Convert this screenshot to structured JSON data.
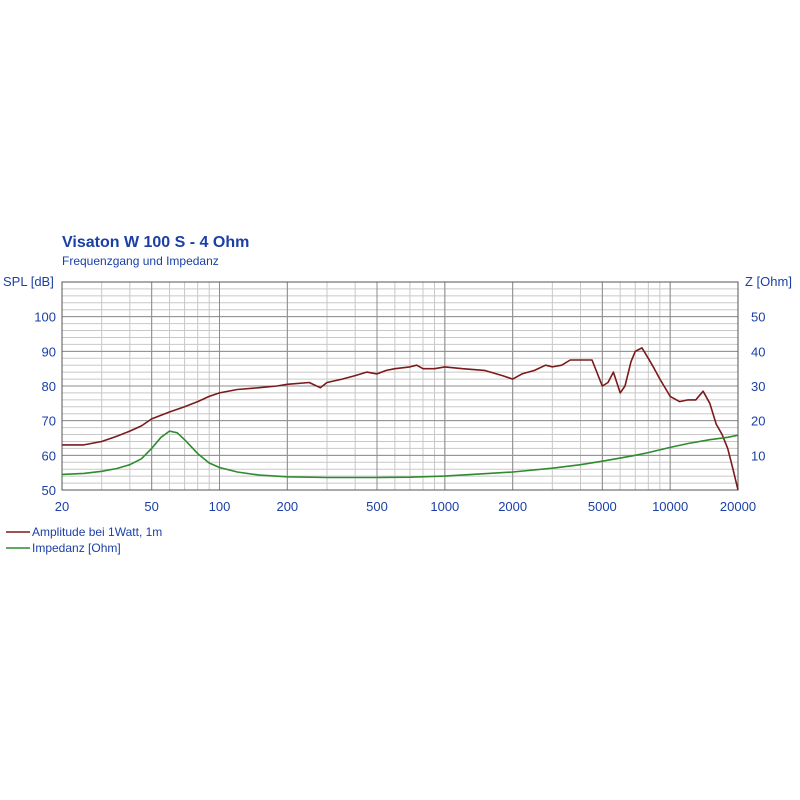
{
  "chart_data": {
    "type": "line",
    "title": "Visaton W 100 S - 4 Ohm",
    "subtitle": "Frequenzgang und Impedanz",
    "ylabel_left": "SPL [dB]",
    "ylabel_right": "Z [Ohm]",
    "x_scale": "log",
    "xlim": [
      20,
      20000
    ],
    "x_ticks": [
      20,
      50,
      100,
      200,
      500,
      1000,
      2000,
      5000,
      10000,
      20000
    ],
    "ylim_left": [
      50,
      110
    ],
    "y_ticks_left": [
      50,
      60,
      70,
      80,
      90,
      100
    ],
    "ylim_right": [
      0,
      60
    ],
    "y_ticks_right": [
      10,
      20,
      30,
      40,
      50
    ],
    "grid": true,
    "legend_position": "bottom-left",
    "series": [
      {
        "name": "Amplitude bei 1Watt, 1m",
        "axis": "left",
        "color": "#7a1a1a",
        "x": [
          20,
          25,
          30,
          35,
          40,
          45,
          50,
          60,
          70,
          80,
          90,
          100,
          120,
          150,
          180,
          200,
          250,
          280,
          300,
          350,
          400,
          450,
          500,
          550,
          600,
          700,
          750,
          800,
          900,
          1000,
          1200,
          1500,
          1800,
          2000,
          2200,
          2500,
          2800,
          3000,
          3300,
          3600,
          4000,
          4500,
          5000,
          5300,
          5600,
          6000,
          6300,
          6700,
          7000,
          7500,
          8000,
          8500,
          9000,
          10000,
          11000,
          12000,
          13000,
          14000,
          15000,
          16000,
          17000,
          18000,
          19000,
          20000
        ],
        "y": [
          63,
          63,
          64,
          65.5,
          67,
          68.5,
          70.5,
          72.5,
          74,
          75.5,
          77,
          78,
          79,
          79.5,
          80,
          80.5,
          81,
          79.5,
          81,
          82,
          83,
          84,
          83.5,
          84.5,
          85,
          85.5,
          86,
          85,
          85,
          85.5,
          85,
          84.5,
          83,
          82,
          83.5,
          84.5,
          86,
          85.5,
          86,
          87.5,
          87.5,
          87.5,
          80,
          81,
          84,
          78,
          80,
          87,
          90,
          91,
          88,
          85,
          82,
          77,
          75.5,
          76,
          76,
          78.5,
          75,
          69,
          66,
          62,
          56,
          50
        ]
      },
      {
        "name": "Impedanz [Ohm]",
        "axis": "right",
        "color": "#2e8b2e",
        "x": [
          20,
          25,
          30,
          35,
          40,
          45,
          50,
          55,
          60,
          65,
          70,
          80,
          90,
          100,
          120,
          150,
          200,
          300,
          500,
          700,
          1000,
          1500,
          2000,
          3000,
          4000,
          5000,
          6000,
          7000,
          8000,
          10000,
          12000,
          15000,
          18000,
          20000
        ],
        "y": [
          4.5,
          4.8,
          5.4,
          6.2,
          7.3,
          9,
          12,
          15.2,
          17,
          16.5,
          14.5,
          10.5,
          7.8,
          6.5,
          5.2,
          4.3,
          3.8,
          3.6,
          3.6,
          3.7,
          4,
          4.7,
          5.2,
          6.3,
          7.3,
          8.3,
          9.2,
          10,
          10.8,
          12.3,
          13.4,
          14.5,
          15.2,
          15.8
        ]
      }
    ]
  }
}
